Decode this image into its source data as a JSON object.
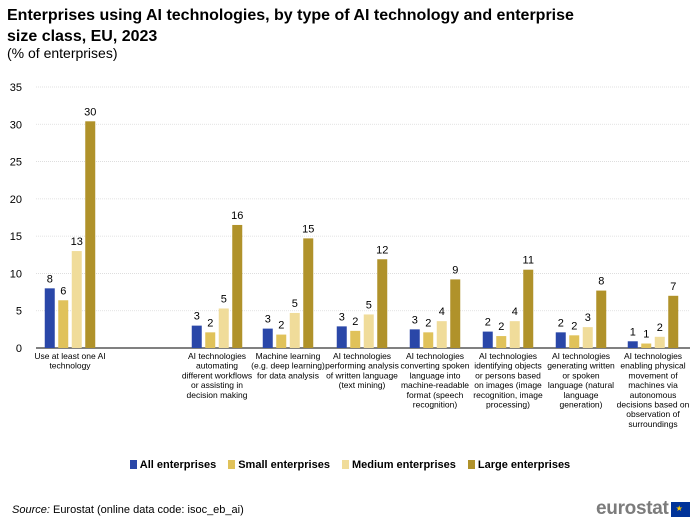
{
  "chart_data": {
    "type": "bar",
    "title": "Enterprises using AI technologies, by type of AI technology and enterprise size class, EU, 2023",
    "subtitle": "(% of enterprises)",
    "ylim": [
      0,
      35
    ],
    "yticks": [
      0,
      5,
      10,
      15,
      20,
      25,
      30,
      35
    ],
    "grid": true,
    "legend_position": "bottom",
    "categories": [
      "Use at least one AI technology",
      "AI technologies automating different workflows or assisting in decision making",
      "Machine learning (e.g. deep learning) for data analysis",
      "AI technologies performing analysis of written language (text mining)",
      "AI technologies converting spoken language into machine-readable format (speech recognition)",
      "AI technologies identifying objects or persons based on images (image recognition, image processing)",
      "AI technologies generating written or spoken language (natural language generation)",
      "AI technologies enabling physical movement of machines via autonomous decisions based on observation of surroundings"
    ],
    "category_lines": [
      [
        "Use at least one AI",
        "technology"
      ],
      [
        "AI technologies",
        "automating",
        "different workflows",
        "or assisting in",
        "decision making"
      ],
      [
        "Machine learning",
        "(e.g. deep learning)",
        "for data analysis"
      ],
      [
        "AI technologies",
        "performing analysis",
        "of written language",
        "(text mining)"
      ],
      [
        "AI technologies",
        "converting spoken",
        "language into",
        "machine-readable",
        "format (speech",
        "recognition)"
      ],
      [
        "AI technologies",
        "identifying objects",
        "or persons based",
        "on images (image",
        "recognition, image",
        "processing)"
      ],
      [
        "AI technologies",
        "generating written",
        "or spoken",
        "language (natural",
        "language",
        "generation)"
      ],
      [
        "AI technologies",
        "enabling physical",
        "movement of",
        "machines via",
        "autonomous",
        "decisions based on",
        "observation of",
        "surroundings"
      ]
    ],
    "series": [
      {
        "name": "All enterprises",
        "color": "#2a47a8",
        "values": [
          8.0,
          3.0,
          2.6,
          2.9,
          2.5,
          2.2,
          2.1,
          0.9
        ],
        "labels": [
          "8",
          "3",
          "3",
          "3",
          "3",
          "2",
          "2",
          "1"
        ]
      },
      {
        "name": "Small enterprises",
        "color": "#e0c25a",
        "values": [
          6.4,
          2.1,
          1.8,
          2.3,
          2.1,
          1.6,
          1.7,
          0.6
        ],
        "labels": [
          "6",
          "2",
          "2",
          "2",
          "2",
          "2",
          "2",
          "1"
        ]
      },
      {
        "name": "Medium enterprises",
        "color": "#f0dc9a",
        "values": [
          13.0,
          5.3,
          4.7,
          4.5,
          3.6,
          3.6,
          2.8,
          1.5
        ],
        "labels": [
          "13",
          "5",
          "5",
          "5",
          "4",
          "4",
          "3",
          "2"
        ]
      },
      {
        "name": "Large enterprises",
        "color": "#b0922a",
        "values": [
          30.4,
          16.5,
          14.7,
          11.9,
          9.2,
          10.5,
          7.7,
          7.0
        ],
        "labels": [
          "30",
          "16",
          "15",
          "12",
          "9",
          "11",
          "8",
          "7"
        ]
      }
    ]
  },
  "source": {
    "prefix": "Source:",
    "text": " Eurostat (online data code: isoc_eb_ai)"
  },
  "logo": {
    "text": "eurostat"
  }
}
